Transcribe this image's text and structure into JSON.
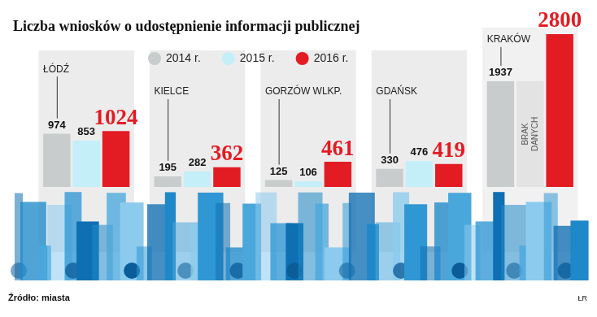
{
  "chart_data": {
    "type": "bar",
    "title": "Liczba wniosków o udostępnienie informacji publicznej",
    "categories": [
      "ŁÓDŹ",
      "KIELCE",
      "GORZÓW WLKP.",
      "GDAŃSK",
      "KRAKÓW"
    ],
    "series": [
      {
        "name": "2014 r.",
        "color": "#c9cccc",
        "values": [
          974,
          195,
          125,
          330,
          1937
        ]
      },
      {
        "name": "2015 r.",
        "color": "#c4eff9",
        "values": [
          853,
          282,
          106,
          476,
          null
        ]
      },
      {
        "name": "2016 r.",
        "color": "#e31b23",
        "values": [
          1024,
          362,
          461,
          419,
          2800
        ]
      }
    ],
    "data_labels": true,
    "tick_labels": false,
    "grid": false,
    "legend": "top",
    "annotations": [
      {
        "text": "BRAK DANYCH",
        "category": "KRAKÓW",
        "series": "2015 r."
      }
    ],
    "source": "Źródło: miasta",
    "credit": "ŁR"
  }
}
